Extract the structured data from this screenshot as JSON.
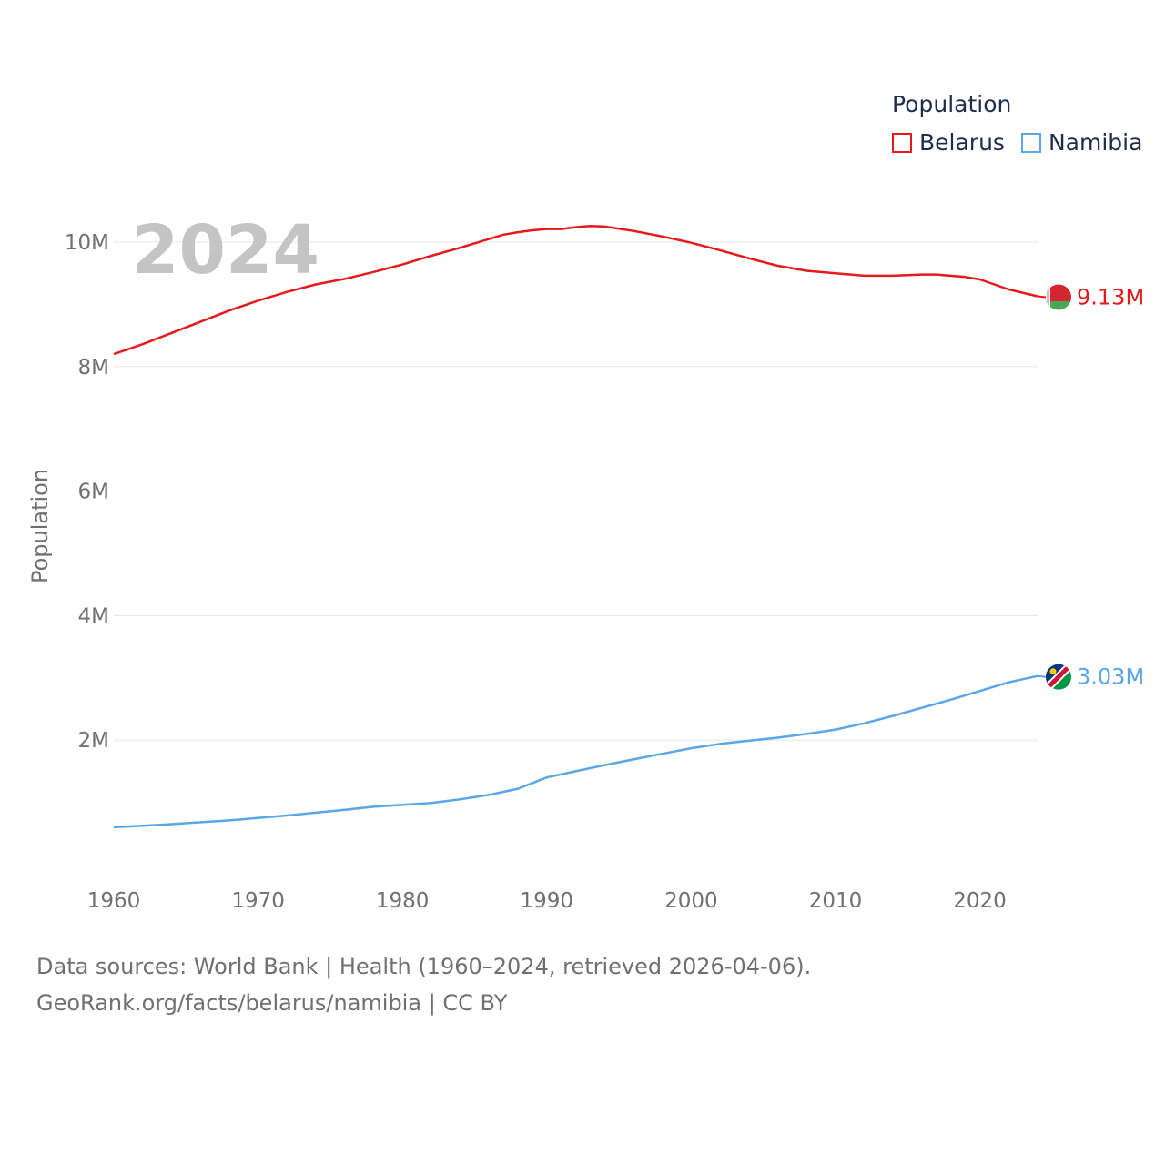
{
  "legend": {
    "title": "Population",
    "items": [
      {
        "label": "Belarus",
        "color": "#e41a1c"
      },
      {
        "label": "Namibia",
        "color": "#5aa6e6"
      }
    ]
  },
  "footer": {
    "line1": "Data sources: World Bank | Health (1960–2024, retrieved 2026-04-06).",
    "line2": "GeoRank.org/facts/belarus/namibia | CC BY"
  },
  "chart_data": {
    "type": "line",
    "title": "Population",
    "year_label": "2024",
    "xlabel": "",
    "ylabel": "Population",
    "xlim": [
      1960,
      2024
    ],
    "ylim": [
      0,
      10700000
    ],
    "x_ticks": [
      1960,
      1970,
      1980,
      1990,
      2000,
      2010,
      2020
    ],
    "x_tick_labels": [
      "1960",
      "1970",
      "1980",
      "1990",
      "2000",
      "2010",
      "2020"
    ],
    "y_ticks": [
      2000000,
      4000000,
      6000000,
      8000000,
      10000000
    ],
    "y_tick_labels": [
      "2M",
      "4M",
      "6M",
      "8M",
      "10M"
    ],
    "grid": true,
    "legend_position": "top-right",
    "series": [
      {
        "name": "Belarus",
        "color": "#e41a1c",
        "end_label": "9.13M",
        "flag": "belarus-flag",
        "x": [
          1960,
          1962,
          1964,
          1966,
          1968,
          1970,
          1972,
          1974,
          1976,
          1978,
          1980,
          1982,
          1984,
          1986,
          1987,
          1988,
          1989,
          1990,
          1991,
          1992,
          1993,
          1994,
          1996,
          1998,
          2000,
          2002,
          2004,
          2006,
          2008,
          2010,
          2012,
          2014,
          2016,
          2017,
          2019,
          2020,
          2022,
          2024
        ],
        "values": [
          8200000,
          8360000,
          8540000,
          8720000,
          8900000,
          9060000,
          9200000,
          9320000,
          9410000,
          9520000,
          9640000,
          9780000,
          9910000,
          10050000,
          10120000,
          10160000,
          10190000,
          10210000,
          10210000,
          10240000,
          10260000,
          10250000,
          10180000,
          10090000,
          9990000,
          9870000,
          9740000,
          9620000,
          9540000,
          9500000,
          9460000,
          9460000,
          9480000,
          9480000,
          9440000,
          9400000,
          9240000,
          9130000
        ]
      },
      {
        "name": "Namibia",
        "color": "#5aa6e6",
        "end_label": "3.03M",
        "flag": "namibia-flag",
        "x": [
          1960,
          1964,
          1968,
          1972,
          1976,
          1978,
          1980,
          1982,
          1984,
          1986,
          1988,
          1990,
          1992,
          1994,
          1996,
          1998,
          2000,
          2002,
          2004,
          2006,
          2008,
          2010,
          2012,
          2014,
          2016,
          2018,
          2020,
          2022,
          2024
        ],
        "values": [
          600000,
          650000,
          710000,
          790000,
          880000,
          930000,
          960000,
          990000,
          1050000,
          1120000,
          1220000,
          1400000,
          1500000,
          1600000,
          1690000,
          1780000,
          1870000,
          1940000,
          1990000,
          2040000,
          2100000,
          2170000,
          2270000,
          2390000,
          2520000,
          2650000,
          2790000,
          2930000,
          3030000
        ]
      }
    ]
  }
}
